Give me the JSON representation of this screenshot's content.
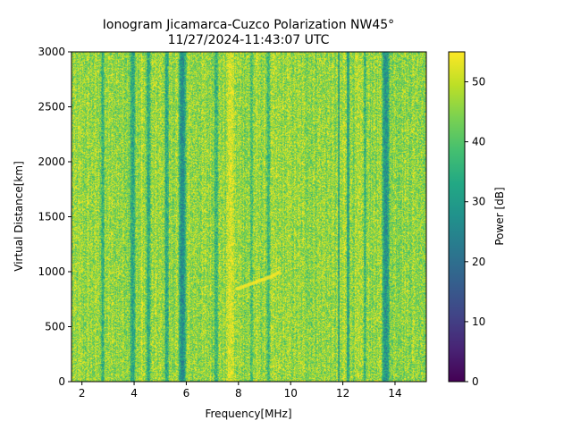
{
  "chart_data": {
    "type": "heatmap",
    "title_line1": "Ionogram Jicamarca-Cuzco Polarization NW45°",
    "title_line2": "11/27/2024-11:43:07 UTC",
    "xlabel": "Frequency[MHz]",
    "ylabel": "Virtual Distance[km]",
    "xlim": [
      1.6,
      15.2
    ],
    "ylim": [
      0,
      3000
    ],
    "xticks": [
      2,
      4,
      6,
      8,
      10,
      12,
      14
    ],
    "xtick_labels": [
      "2",
      "4",
      "6",
      "8",
      "10",
      "12",
      "14"
    ],
    "yticks": [
      0,
      500,
      1000,
      1500,
      2000,
      2500,
      3000
    ],
    "ytick_labels": [
      "0",
      "500",
      "1000",
      "1500",
      "2000",
      "2500",
      "3000"
    ],
    "colorbar": {
      "label": "Power [dB]",
      "range": [
        0,
        55
      ],
      "ticks": [
        0,
        10,
        20,
        30,
        40,
        50
      ],
      "tick_labels": [
        "0",
        "10",
        "20",
        "30",
        "40",
        "50"
      ],
      "colormap": "viridis"
    },
    "background_level_db": 46,
    "features": [
      {
        "kind": "low-power band",
        "freq_mhz": 2.8,
        "width_mhz": 0.15,
        "level_db": 34
      },
      {
        "kind": "low-power band",
        "freq_mhz": 3.95,
        "width_mhz": 0.25,
        "level_db": 32
      },
      {
        "kind": "high-power line",
        "freq_mhz": 4.3,
        "width_mhz": 0.06,
        "level_db": 54
      },
      {
        "kind": "low-power band",
        "freq_mhz": 4.55,
        "width_mhz": 0.2,
        "level_db": 33
      },
      {
        "kind": "low-power band",
        "freq_mhz": 5.25,
        "width_mhz": 0.2,
        "level_db": 33
      },
      {
        "kind": "low-power band",
        "freq_mhz": 5.85,
        "width_mhz": 0.35,
        "level_db": 27
      },
      {
        "kind": "low-power band",
        "freq_mhz": 7.15,
        "width_mhz": 0.2,
        "level_db": 36
      },
      {
        "kind": "high-power band",
        "freq_mhz": 7.7,
        "width_mhz": 0.35,
        "level_db": 53
      },
      {
        "kind": "low-power band",
        "freq_mhz": 8.5,
        "width_mhz": 0.15,
        "level_db": 38
      },
      {
        "kind": "low-power band",
        "freq_mhz": 9.15,
        "width_mhz": 0.15,
        "level_db": 36
      },
      {
        "kind": "low-power band",
        "freq_mhz": 11.85,
        "width_mhz": 0.08,
        "level_db": 30
      },
      {
        "kind": "high-power line",
        "freq_mhz": 12.05,
        "width_mhz": 0.05,
        "level_db": 54
      },
      {
        "kind": "low-power band",
        "freq_mhz": 12.2,
        "width_mhz": 0.12,
        "level_db": 30
      },
      {
        "kind": "low-power band",
        "freq_mhz": 12.85,
        "width_mhz": 0.12,
        "level_db": 36
      },
      {
        "kind": "low-power band",
        "freq_mhz": 13.65,
        "width_mhz": 0.35,
        "level_db": 28
      }
    ],
    "trace": {
      "kind": "echo trace",
      "level_db": 55,
      "points_mhz_km": [
        [
          7.9,
          840
        ],
        [
          8.6,
          900
        ],
        [
          9.2,
          950
        ],
        [
          9.6,
          1000
        ]
      ]
    }
  }
}
